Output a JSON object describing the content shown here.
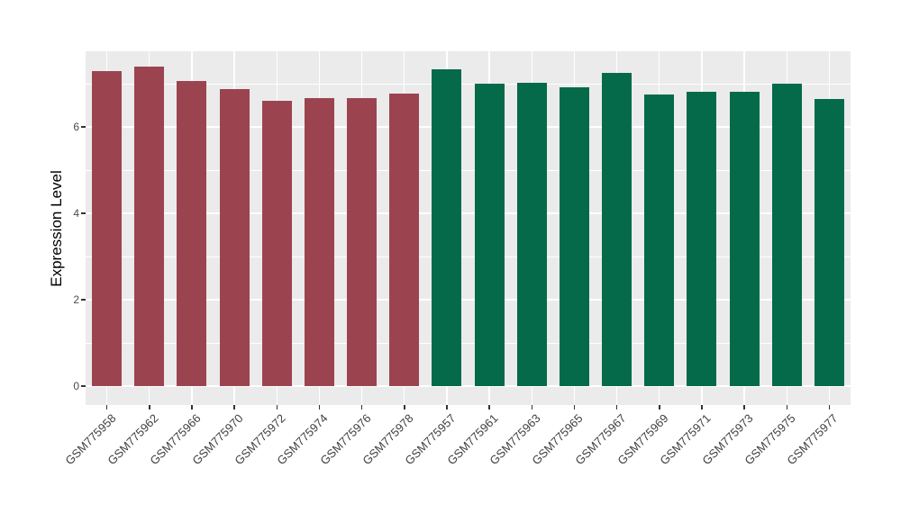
{
  "figure": {
    "background": "#FFFFFF",
    "panel_background": "#EBEBEB",
    "gridline_color": "#FFFFFF",
    "tick_mark_color": "#333333",
    "axis_text_color": "#404040"
  },
  "chart_data": {
    "type": "bar",
    "title": "",
    "xlabel": "",
    "ylabel": "Expression Level",
    "categories": [
      "GSM775958",
      "GSM775962",
      "GSM775966",
      "GSM775970",
      "GSM775972",
      "GSM775974",
      "GSM775976",
      "GSM775978",
      "GSM775957",
      "GSM775961",
      "GSM775963",
      "GSM775965",
      "GSM775967",
      "GSM775969",
      "GSM775971",
      "GSM775973",
      "GSM775975",
      "GSM775977"
    ],
    "values": [
      7.29,
      7.39,
      7.06,
      6.88,
      6.61,
      6.67,
      6.66,
      6.78,
      7.33,
      7.01,
      7.03,
      6.92,
      7.26,
      6.75,
      6.81,
      6.81,
      6.99,
      6.65
    ],
    "groups": [
      "red",
      "red",
      "red",
      "red",
      "red",
      "red",
      "red",
      "red",
      "green",
      "green",
      "green",
      "green",
      "green",
      "green",
      "green",
      "green",
      "green",
      "green"
    ],
    "group_colors": {
      "red": "#9B4450",
      "green": "#046A4A"
    },
    "y_axis": {
      "ticks": [
        0,
        2,
        4,
        6
      ],
      "tick_labels": [
        "0",
        "2",
        "4",
        "6"
      ],
      "minor_ticks": [
        1,
        3,
        5,
        7
      ],
      "ylim": [
        -0.44,
        7.75
      ]
    },
    "x_axis": {
      "tick_label_angle": 45
    },
    "legend": "none",
    "grid": "on"
  }
}
